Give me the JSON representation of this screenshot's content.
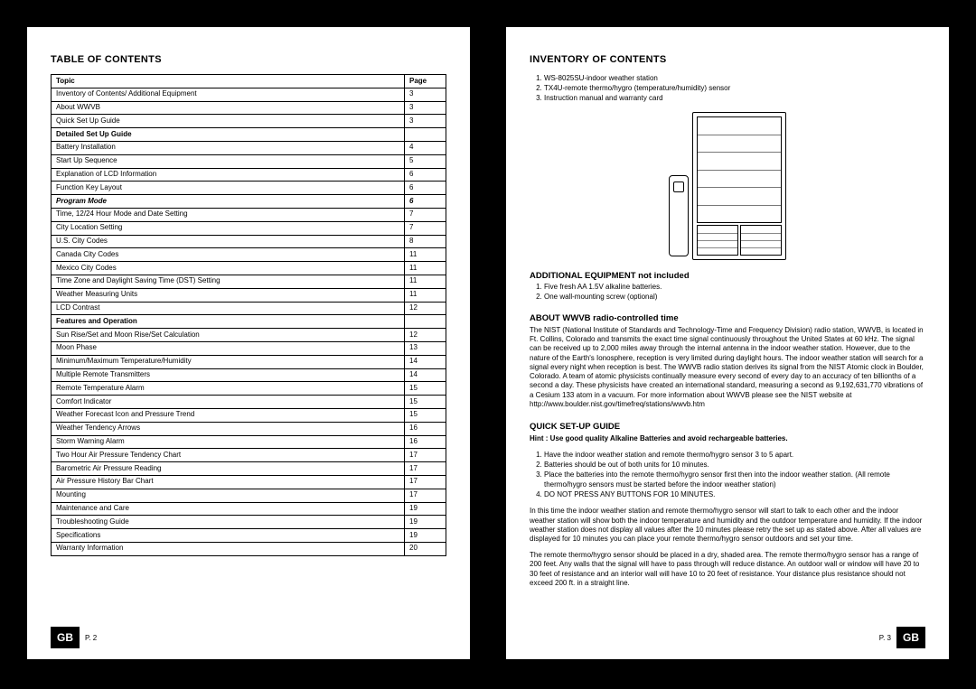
{
  "left": {
    "heading": "TABLE OF CONTENTS",
    "th_topic": "Topic",
    "th_page": "Page",
    "rows": [
      {
        "t": "Inventory of Contents/ Additional Equipment",
        "p": "3",
        "c": ""
      },
      {
        "t": "About WWVB",
        "p": "3",
        "c": ""
      },
      {
        "t": "Quick Set Up Guide",
        "p": "3",
        "c": ""
      },
      {
        "t": "Detailed Set Up Guide",
        "p": "",
        "c": "sect"
      },
      {
        "t": "Battery Installation",
        "p": "4",
        "c": ""
      },
      {
        "t": "Start Up Sequence",
        "p": "5",
        "c": ""
      },
      {
        "t": "Explanation of LCD Information",
        "p": "6",
        "c": ""
      },
      {
        "t": "Function Key Layout",
        "p": "6",
        "c": ""
      },
      {
        "t": "Program Mode",
        "p": "6",
        "c": "italic"
      },
      {
        "t": "Time, 12/24 Hour Mode and Date Setting",
        "p": "7",
        "c": ""
      },
      {
        "t": "City Location Setting",
        "p": "7",
        "c": ""
      },
      {
        "t": "U.S. City Codes",
        "p": "8",
        "c": ""
      },
      {
        "t": "Canada City Codes",
        "p": "11",
        "c": ""
      },
      {
        "t": "Mexico City Codes",
        "p": "11",
        "c": ""
      },
      {
        "t": "Time Zone and Daylight Saving Time (DST) Setting",
        "p": "11",
        "c": ""
      },
      {
        "t": "Weather Measuring Units",
        "p": "11",
        "c": ""
      },
      {
        "t": "LCD Contrast",
        "p": "12",
        "c": ""
      },
      {
        "t": "Features and Operation",
        "p": "",
        "c": "sect"
      },
      {
        "t": "Sun Rise/Set and Moon Rise/Set Calculation",
        "p": "12",
        "c": ""
      },
      {
        "t": "Moon Phase",
        "p": "13",
        "c": ""
      },
      {
        "t": "Minimum/Maximum Temperature/Humidity",
        "p": "14",
        "c": ""
      },
      {
        "t": "Multiple Remote Transmitters",
        "p": "14",
        "c": ""
      },
      {
        "t": "Remote Temperature Alarm",
        "p": "15",
        "c": ""
      },
      {
        "t": "Comfort Indicator",
        "p": "15",
        "c": ""
      },
      {
        "t": "Weather Forecast Icon and Pressure Trend",
        "p": "15",
        "c": ""
      },
      {
        "t": "Weather Tendency Arrows",
        "p": "16",
        "c": ""
      },
      {
        "t": "Storm Warning Alarm",
        "p": "16",
        "c": ""
      },
      {
        "t": "Two Hour Air Pressure Tendency Chart",
        "p": "17",
        "c": ""
      },
      {
        "t": "Barometric Air Pressure Reading",
        "p": "17",
        "c": ""
      },
      {
        "t": "Air Pressure History Bar Chart",
        "p": "17",
        "c": ""
      },
      {
        "t": "Mounting",
        "p": "17",
        "c": ""
      },
      {
        "t": "Maintenance and Care",
        "p": "19",
        "c": ""
      },
      {
        "t": "Troubleshooting Guide",
        "p": "19",
        "c": ""
      },
      {
        "t": "Specifications",
        "p": "19",
        "c": ""
      },
      {
        "t": "Warranty Information",
        "p": "20",
        "c": ""
      }
    ],
    "gb": "GB",
    "pnum": "P. 2"
  },
  "right": {
    "inv_heading": "INVENTORY OF CONTENTS",
    "inv_items": [
      "WS-8025SU-indoor weather station",
      "TX4U-remote thermo/hygro (temperature/humidity) sensor",
      "Instruction manual and warranty card"
    ],
    "add_heading": "ADDITIONAL EQUIPMENT not included",
    "add_items": [
      "Five fresh AA 1.5V alkaline batteries.",
      "One wall-mounting screw (optional)"
    ],
    "about_heading": "ABOUT WWVB radio-controlled time",
    "about_text": "The NIST (National Institute of Standards and Technology-Time and Frequency Division) radio station, WWVB, is located in Ft. Collins, Colorado and transmits the exact time signal continuously throughout the United States at 60 kHz. The signal can be received up to 2,000 miles away through the internal antenna in the indoor weather station. However, due to the nature of the Earth's Ionosphere, reception is very limited during daylight hours. The indoor weather station will search for a signal every night when reception is best. The WWVB radio station derives its signal from the NIST Atomic clock in Boulder, Colorado. A team of atomic physicists continually measure every second of every day to an accuracy of ten billionths of a second a day. These physicists have created an international standard, measuring a second as 9,192,631,770 vibrations of a Cesium 133 atom in a vacuum. For more information about WWVB please see the NIST website at http://www.boulder.nist.gov/timefreq/stations/wwvb.htm",
    "quick_heading": "QUICK SET-UP GUIDE",
    "hint": "Hint : Use good quality Alkaline Batteries and avoid rechargeable batteries.",
    "quick_steps": [
      "Have the indoor weather station and remote thermo/hygro sensor 3 to 5 apart.",
      "Batteries should be out of both units for 10 minutes.",
      "Place the batteries into the remote thermo/hygro sensor first then into the indoor weather station. (All remote thermo/hygro sensors must be started before the indoor weather station)",
      "DO NOT PRESS ANY BUTTONS FOR 10 MINUTES."
    ],
    "quick_p1": "In this time the indoor weather station and remote thermo/hygro sensor will start to talk to each other and the indoor weather station will show both the indoor temperature and humidity and the outdoor temperature and humidity.  If the indoor weather station does not display all values after the 10 minutes please retry the set up as stated above.  After all values are displayed for 10 minutes you can place your remote thermo/hygro sensor outdoors and set your time.",
    "quick_p2": "The remote thermo/hygro sensor should be placed in a dry, shaded area. The remote thermo/hygro sensor has a range of 200 feet. Any walls that the signal will have to pass through will reduce distance. An outdoor wall or window will have 20 to 30 feet of resistance and an interior wall will have 10 to 20 feet of resistance. Your distance plus resistance should not exceed 200 ft. in a straight line.",
    "gb": "GB",
    "pnum": "P. 3"
  }
}
